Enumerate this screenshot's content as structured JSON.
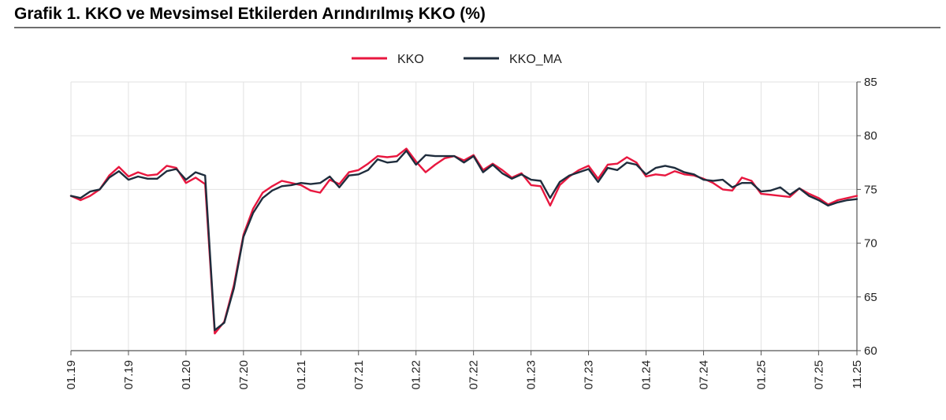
{
  "title": "Grafik 1. KKO ve Mevsimsel Etkilerden Arındırılmış KKO (%)",
  "chart_data": {
    "type": "line",
    "title": "Grafik 1. KKO ve Mevsimsel Etkilerden Arındırılmış KKO (%)",
    "xlabel": "",
    "ylabel": "",
    "ylim": [
      60,
      85
    ],
    "yticks": [
      60,
      65,
      70,
      75,
      80,
      85
    ],
    "xtick_labels": [
      "01.19",
      "07.19",
      "01.20",
      "07.20",
      "01.21",
      "07.21",
      "01.22",
      "07.22",
      "01.23",
      "07.23",
      "01.24",
      "07.24",
      "01.25",
      "07.25",
      "11.25"
    ],
    "xtick_month_index": [
      0,
      6,
      12,
      18,
      24,
      30,
      36,
      42,
      48,
      54,
      60,
      66,
      72,
      78,
      82
    ],
    "grid": true,
    "legend_position": "top-center",
    "y_axis_side": "right",
    "series": [
      {
        "name": "KKO",
        "color": "#e8173f",
        "values": [
          74.4,
          74.0,
          74.4,
          75.0,
          76.3,
          77.1,
          76.2,
          76.6,
          76.3,
          76.4,
          77.2,
          77.0,
          75.6,
          76.1,
          75.5,
          61.6,
          62.7,
          66.1,
          70.8,
          73.2,
          74.7,
          75.3,
          75.8,
          75.6,
          75.4,
          74.9,
          74.7,
          75.9,
          75.5,
          76.6,
          76.8,
          77.4,
          78.1,
          78.0,
          78.1,
          78.8,
          77.6,
          76.6,
          77.3,
          77.9,
          78.1,
          77.7,
          78.2,
          76.8,
          77.4,
          76.8,
          76.1,
          76.5,
          75.4,
          75.3,
          73.5,
          75.4,
          76.2,
          76.8,
          77.2,
          76.0,
          77.3,
          77.4,
          78.0,
          77.5,
          76.2,
          76.4,
          76.3,
          76.7,
          76.4,
          76.3,
          76.0,
          75.6,
          75.0,
          74.9,
          76.1,
          75.8,
          74.6,
          74.5,
          74.4,
          74.3,
          75.1,
          74.6,
          74.2,
          73.6,
          74.0,
          74.2,
          74.4
        ]
      },
      {
        "name": "KKO_MA",
        "color": "#1f2d3d",
        "values": [
          74.4,
          74.2,
          74.8,
          75.0,
          76.1,
          76.7,
          75.9,
          76.2,
          76.0,
          76.0,
          76.7,
          76.9,
          75.9,
          76.6,
          76.3,
          61.9,
          62.6,
          65.8,
          70.6,
          72.8,
          74.2,
          74.9,
          75.3,
          75.4,
          75.6,
          75.5,
          75.6,
          76.2,
          75.2,
          76.3,
          76.4,
          76.8,
          77.8,
          77.5,
          77.6,
          78.6,
          77.3,
          78.2,
          78.1,
          78.1,
          78.1,
          77.5,
          78.1,
          76.6,
          77.3,
          76.5,
          76.0,
          76.4,
          75.9,
          75.8,
          74.2,
          75.7,
          76.3,
          76.6,
          76.9,
          75.7,
          77.0,
          76.8,
          77.5,
          77.3,
          76.4,
          77.0,
          77.2,
          77.0,
          76.6,
          76.4,
          75.9,
          75.8,
          75.9,
          75.2,
          75.6,
          75.6,
          74.8,
          74.9,
          75.2,
          74.5,
          75.1,
          74.4,
          74.0,
          73.5,
          73.8,
          74.0,
          74.1
        ]
      }
    ]
  }
}
